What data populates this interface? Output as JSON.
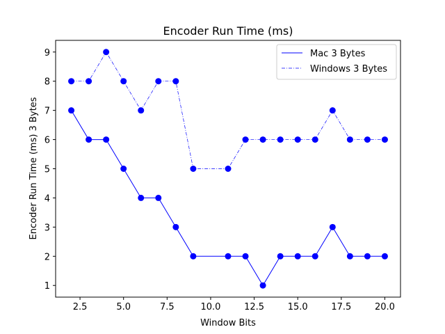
{
  "chart_data": {
    "type": "line",
    "title": "Encoder Run Time (ms)",
    "xlabel": "Window Bits",
    "ylabel": "Encoder Run Time (ms) 3 Bytes",
    "xlim": [
      1.1,
      20.9
    ],
    "ylim": [
      0.6,
      9.4
    ],
    "xticks": [
      2.5,
      5.0,
      7.5,
      10.0,
      12.5,
      15.0,
      17.5,
      20.0
    ],
    "xtick_labels": [
      "2.5",
      "5.0",
      "7.5",
      "10.0",
      "12.5",
      "15.0",
      "17.5",
      "20.0"
    ],
    "yticks": [
      1,
      2,
      3,
      4,
      5,
      6,
      7,
      8,
      9
    ],
    "ytick_labels": [
      "1",
      "2",
      "3",
      "4",
      "5",
      "6",
      "7",
      "8",
      "9"
    ],
    "grid": false,
    "legend_position": "upper right",
    "series": [
      {
        "name": "Mac 3 Bytes",
        "style": "solid",
        "color": "#0000ff",
        "marker": "circle",
        "x": [
          2,
          3,
          4,
          5,
          6,
          7,
          8,
          9,
          11,
          12,
          13,
          14,
          15,
          16,
          17,
          18,
          19,
          20
        ],
        "y": [
          7,
          6,
          6,
          5,
          4,
          4,
          3,
          2,
          2,
          2,
          1,
          2,
          2,
          2,
          3,
          2,
          2,
          2
        ]
      },
      {
        "name": "Windows 3 Bytes",
        "style": "dashdot",
        "color": "#0000ff",
        "marker": "circle",
        "x": [
          2,
          3,
          4,
          5,
          6,
          7,
          8,
          9,
          11,
          12,
          13,
          14,
          15,
          16,
          17,
          18,
          19,
          20
        ],
        "y": [
          8,
          8,
          9,
          8,
          7,
          8,
          8,
          5,
          5,
          6,
          6,
          6,
          6,
          6,
          7,
          6,
          6,
          6
        ]
      }
    ]
  }
}
